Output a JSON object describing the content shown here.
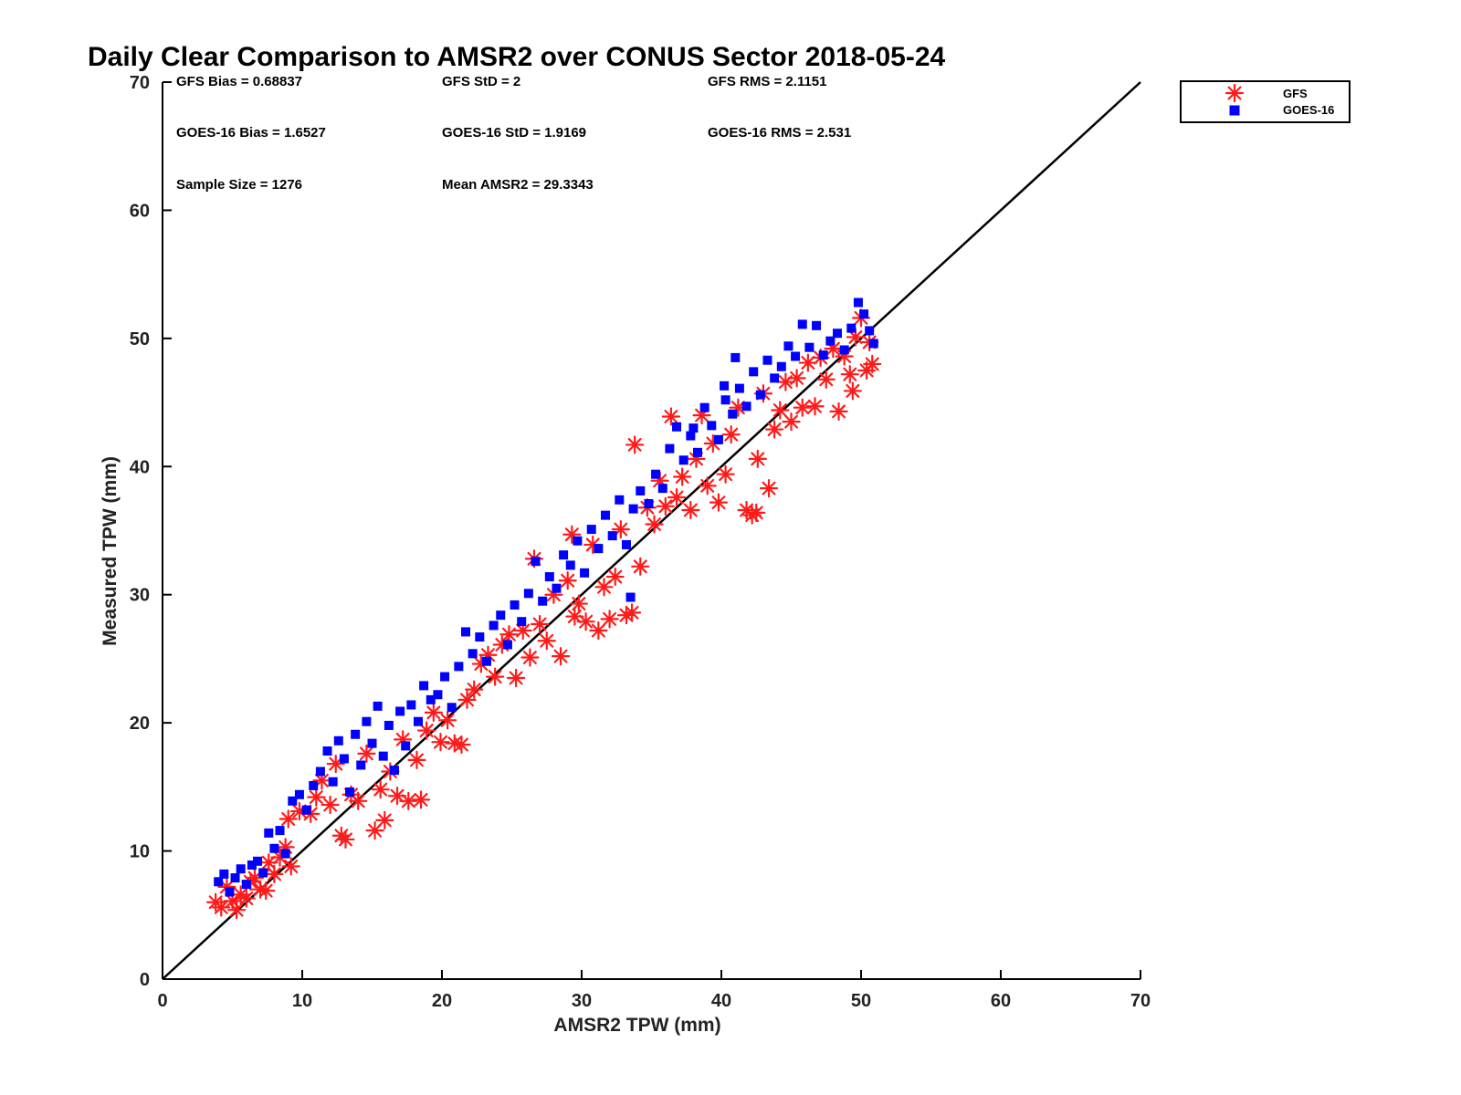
{
  "chart_data": {
    "type": "scatter",
    "title": "Daily Clear Comparison to AMSR2 over CONUS Sector 2018-05-24",
    "xlabel": "AMSR2 TPW (mm)",
    "ylabel": "Measured TPW (mm)",
    "xlim": [
      0,
      70
    ],
    "ylim": [
      0,
      70
    ],
    "x_ticks": [
      "0",
      "10",
      "20",
      "30",
      "40",
      "50",
      "60",
      "70"
    ],
    "y_ticks": [
      "0",
      "10",
      "20",
      "30",
      "40",
      "50",
      "60",
      "70"
    ],
    "grid": false,
    "legend_position": "top-right (outside plot)",
    "stats": [
      "GFS Bias = 0.68837",
      "GFS StD = 2",
      "GFS RMS = 2.1151",
      "GOES-16 Bias = 1.6527",
      "GOES-16 StD = 1.9169",
      "GOES-16 RMS = 2.531",
      "Sample Size = 1276",
      "Mean AMSR2 = 29.3343"
    ],
    "reference_line": {
      "x": [
        0,
        70
      ],
      "y": [
        0,
        70
      ]
    },
    "series": [
      {
        "name": "GFS",
        "marker": "asterisk",
        "color": "#ff1a1a",
        "points": [
          [
            3.8,
            6.0
          ],
          [
            4.2,
            5.6
          ],
          [
            4.6,
            7.2
          ],
          [
            5.0,
            6.1
          ],
          [
            5.3,
            5.4
          ],
          [
            5.6,
            6.6
          ],
          [
            6.0,
            6.3
          ],
          [
            6.3,
            7.6
          ],
          [
            6.6,
            7.9
          ],
          [
            7.0,
            7.0
          ],
          [
            7.4,
            6.9
          ],
          [
            7.6,
            9.1
          ],
          [
            8.0,
            8.2
          ],
          [
            8.4,
            9.5
          ],
          [
            8.8,
            10.3
          ],
          [
            9.2,
            8.8
          ],
          [
            9.0,
            12.5
          ],
          [
            9.8,
            13.1
          ],
          [
            10.6,
            12.9
          ],
          [
            11.0,
            14.2
          ],
          [
            11.4,
            15.5
          ],
          [
            12.0,
            13.6
          ],
          [
            12.4,
            16.8
          ],
          [
            12.8,
            11.2
          ],
          [
            13.1,
            10.9
          ],
          [
            13.5,
            14.4
          ],
          [
            14.0,
            13.9
          ],
          [
            14.6,
            17.6
          ],
          [
            15.2,
            11.6
          ],
          [
            15.6,
            14.8
          ],
          [
            15.9,
            12.4
          ],
          [
            16.3,
            16.2
          ],
          [
            16.8,
            14.3
          ],
          [
            17.2,
            18.7
          ],
          [
            17.6,
            13.9
          ],
          [
            18.2,
            17.1
          ],
          [
            18.5,
            14.0
          ],
          [
            18.9,
            19.4
          ],
          [
            19.4,
            20.8
          ],
          [
            19.9,
            18.5
          ],
          [
            20.4,
            20.2
          ],
          [
            20.9,
            18.4
          ],
          [
            21.4,
            18.3
          ],
          [
            21.8,
            21.8
          ],
          [
            22.3,
            22.6
          ],
          [
            22.8,
            24.6
          ],
          [
            23.3,
            25.3
          ],
          [
            23.8,
            23.6
          ],
          [
            24.3,
            26.1
          ],
          [
            24.8,
            26.9
          ],
          [
            25.3,
            23.5
          ],
          [
            25.8,
            27.2
          ],
          [
            26.3,
            25.1
          ],
          [
            26.6,
            32.8
          ],
          [
            27.0,
            27.7
          ],
          [
            27.5,
            26.4
          ],
          [
            28.0,
            30.0
          ],
          [
            28.5,
            25.2
          ],
          [
            29.0,
            31.1
          ],
          [
            29.3,
            34.7
          ],
          [
            29.8,
            29.3
          ],
          [
            30.3,
            27.9
          ],
          [
            30.8,
            33.9
          ],
          [
            31.2,
            27.2
          ],
          [
            31.6,
            30.6
          ],
          [
            32.0,
            28.1
          ],
          [
            32.4,
            31.4
          ],
          [
            32.8,
            35.1
          ],
          [
            33.2,
            28.4
          ],
          [
            33.6,
            28.6
          ],
          [
            33.8,
            41.7
          ],
          [
            34.2,
            32.2
          ],
          [
            34.7,
            36.8
          ],
          [
            35.2,
            35.5
          ],
          [
            35.6,
            38.9
          ],
          [
            36.0,
            36.9
          ],
          [
            36.4,
            43.9
          ],
          [
            36.8,
            37.6
          ],
          [
            37.2,
            39.2
          ],
          [
            37.8,
            36.6
          ],
          [
            38.2,
            40.6
          ],
          [
            38.6,
            44.0
          ],
          [
            39.0,
            38.5
          ],
          [
            39.4,
            41.8
          ],
          [
            39.8,
            37.2
          ],
          [
            40.3,
            39.4
          ],
          [
            40.7,
            42.5
          ],
          [
            41.2,
            44.6
          ],
          [
            41.8,
            36.6
          ],
          [
            42.2,
            36.2
          ],
          [
            42.6,
            40.6
          ],
          [
            43.0,
            45.7
          ],
          [
            43.4,
            38.3
          ],
          [
            43.8,
            42.9
          ],
          [
            44.2,
            44.4
          ],
          [
            44.6,
            46.6
          ],
          [
            45.0,
            43.5
          ],
          [
            45.4,
            46.9
          ],
          [
            45.8,
            44.6
          ],
          [
            46.2,
            48.1
          ],
          [
            46.7,
            44.7
          ],
          [
            47.1,
            48.5
          ],
          [
            47.5,
            46.8
          ],
          [
            48.0,
            49.2
          ],
          [
            48.4,
            44.3
          ],
          [
            48.8,
            48.6
          ],
          [
            49.2,
            47.2
          ],
          [
            49.6,
            50.1
          ],
          [
            50.0,
            51.6
          ],
          [
            50.4,
            47.5
          ],
          [
            50.6,
            49.7
          ],
          [
            50.8,
            48.0
          ],
          [
            49.4,
            45.9
          ],
          [
            42.5,
            36.4
          ],
          [
            29.5,
            28.3
          ]
        ]
      },
      {
        "name": "GOES-16",
        "marker": "square",
        "color": "#0000ff",
        "points": [
          [
            4.0,
            7.6
          ],
          [
            4.4,
            8.2
          ],
          [
            4.8,
            6.8
          ],
          [
            5.2,
            7.9
          ],
          [
            5.6,
            8.6
          ],
          [
            6.0,
            7.4
          ],
          [
            6.4,
            8.9
          ],
          [
            6.8,
            9.2
          ],
          [
            7.2,
            8.3
          ],
          [
            7.6,
            11.4
          ],
          [
            8.0,
            10.2
          ],
          [
            8.4,
            11.6
          ],
          [
            8.8,
            9.8
          ],
          [
            9.3,
            13.9
          ],
          [
            9.8,
            14.4
          ],
          [
            10.3,
            13.2
          ],
          [
            10.8,
            15.1
          ],
          [
            11.3,
            16.2
          ],
          [
            11.8,
            17.8
          ],
          [
            12.2,
            15.4
          ],
          [
            12.6,
            18.6
          ],
          [
            13.0,
            17.2
          ],
          [
            13.4,
            14.6
          ],
          [
            13.8,
            19.1
          ],
          [
            14.2,
            16.7
          ],
          [
            14.6,
            20.1
          ],
          [
            15.0,
            18.4
          ],
          [
            15.4,
            21.3
          ],
          [
            15.8,
            17.4
          ],
          [
            16.2,
            19.8
          ],
          [
            16.6,
            16.3
          ],
          [
            17.0,
            20.9
          ],
          [
            17.4,
            18.2
          ],
          [
            17.8,
            21.4
          ],
          [
            18.3,
            20.1
          ],
          [
            18.7,
            22.9
          ],
          [
            19.2,
            21.8
          ],
          [
            19.7,
            22.2
          ],
          [
            20.2,
            23.6
          ],
          [
            20.7,
            21.2
          ],
          [
            21.2,
            24.4
          ],
          [
            21.7,
            27.1
          ],
          [
            22.2,
            25.4
          ],
          [
            22.7,
            26.7
          ],
          [
            23.2,
            24.8
          ],
          [
            23.7,
            27.6
          ],
          [
            24.2,
            28.4
          ],
          [
            24.7,
            26.1
          ],
          [
            25.2,
            29.2
          ],
          [
            25.7,
            27.9
          ],
          [
            26.2,
            30.1
          ],
          [
            26.7,
            32.6
          ],
          [
            27.2,
            29.5
          ],
          [
            27.7,
            31.4
          ],
          [
            28.2,
            30.5
          ],
          [
            28.7,
            33.1
          ],
          [
            29.2,
            32.3
          ],
          [
            29.7,
            34.2
          ],
          [
            30.2,
            31.7
          ],
          [
            30.7,
            35.1
          ],
          [
            31.2,
            33.6
          ],
          [
            31.7,
            36.2
          ],
          [
            32.2,
            34.6
          ],
          [
            32.7,
            37.4
          ],
          [
            33.2,
            33.9
          ],
          [
            33.7,
            36.7
          ],
          [
            34.2,
            38.1
          ],
          [
            34.8,
            37.1
          ],
          [
            35.3,
            39.4
          ],
          [
            35.8,
            38.3
          ],
          [
            36.3,
            41.4
          ],
          [
            36.8,
            43.1
          ],
          [
            37.3,
            40.5
          ],
          [
            37.8,
            42.4
          ],
          [
            38.3,
            41.1
          ],
          [
            38.8,
            44.6
          ],
          [
            39.3,
            43.2
          ],
          [
            39.8,
            42.1
          ],
          [
            40.3,
            45.2
          ],
          [
            40.8,
            44.1
          ],
          [
            41.3,
            46.1
          ],
          [
            41.8,
            44.7
          ],
          [
            42.3,
            47.4
          ],
          [
            42.8,
            45.6
          ],
          [
            43.3,
            48.3
          ],
          [
            43.8,
            46.9
          ],
          [
            44.3,
            47.8
          ],
          [
            44.8,
            49.4
          ],
          [
            45.3,
            48.6
          ],
          [
            45.8,
            51.1
          ],
          [
            46.3,
            49.3
          ],
          [
            46.8,
            51.0
          ],
          [
            47.3,
            48.7
          ],
          [
            47.8,
            49.8
          ],
          [
            48.3,
            50.4
          ],
          [
            48.8,
            49.1
          ],
          [
            49.3,
            50.8
          ],
          [
            49.8,
            52.8
          ],
          [
            50.2,
            51.9
          ],
          [
            50.6,
            50.6
          ],
          [
            50.9,
            49.6
          ],
          [
            41.0,
            48.5
          ],
          [
            40.2,
            46.3
          ],
          [
            38.0,
            43.0
          ],
          [
            33.5,
            29.8
          ]
        ]
      }
    ]
  }
}
